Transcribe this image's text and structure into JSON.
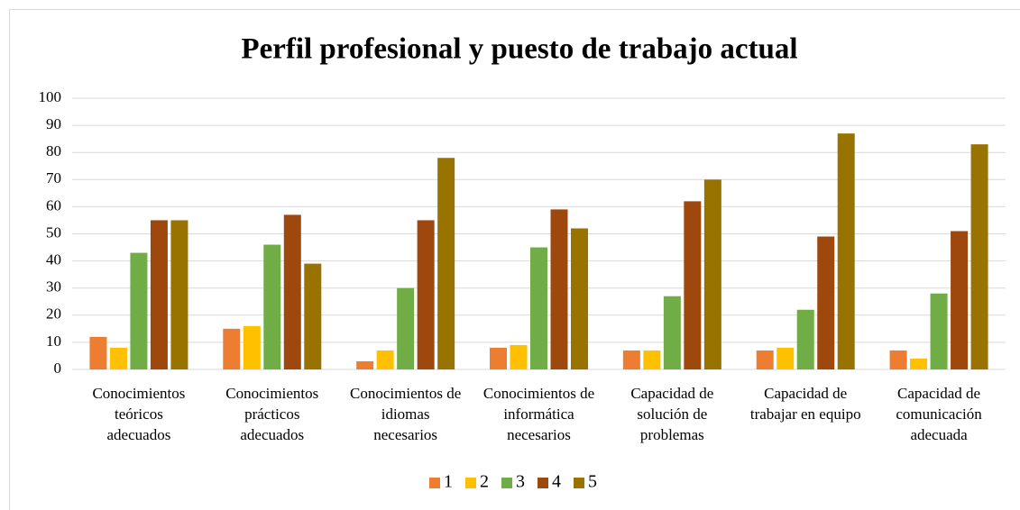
{
  "chart_data": {
    "type": "bar",
    "title": "Perfil profesional y puesto de trabajo actual",
    "categories": [
      "Conocimientos teóricos adecuados",
      "Conocimientos prácticos adecuados",
      "Conocimientos de idiomas necesarios",
      "Conocimientos de informática necesarios",
      "Capacidad de solución de problemas",
      "Capacidad de trabajar en equipo",
      "Capacidad de comunicación adecuada"
    ],
    "series": [
      {
        "name": "1",
        "color": "#ed7d31",
        "values": [
          12,
          15,
          3,
          8,
          7,
          7,
          7
        ]
      },
      {
        "name": "2",
        "color": "#ffc000",
        "values": [
          8,
          16,
          7,
          9,
          7,
          8,
          4
        ]
      },
      {
        "name": "3",
        "color": "#70ad47",
        "values": [
          43,
          46,
          30,
          45,
          27,
          22,
          28
        ]
      },
      {
        "name": "4",
        "color": "#9e480e",
        "values": [
          55,
          57,
          55,
          59,
          62,
          49,
          51
        ]
      },
      {
        "name": "5",
        "color": "#997300",
        "values": [
          55,
          39,
          78,
          52,
          70,
          87,
          83
        ]
      }
    ],
    "ylim": [
      0,
      100
    ],
    "yticks": [
      0,
      10,
      20,
      30,
      40,
      50,
      60,
      70,
      80,
      90,
      100
    ],
    "grid": true,
    "legend": "bottom"
  }
}
